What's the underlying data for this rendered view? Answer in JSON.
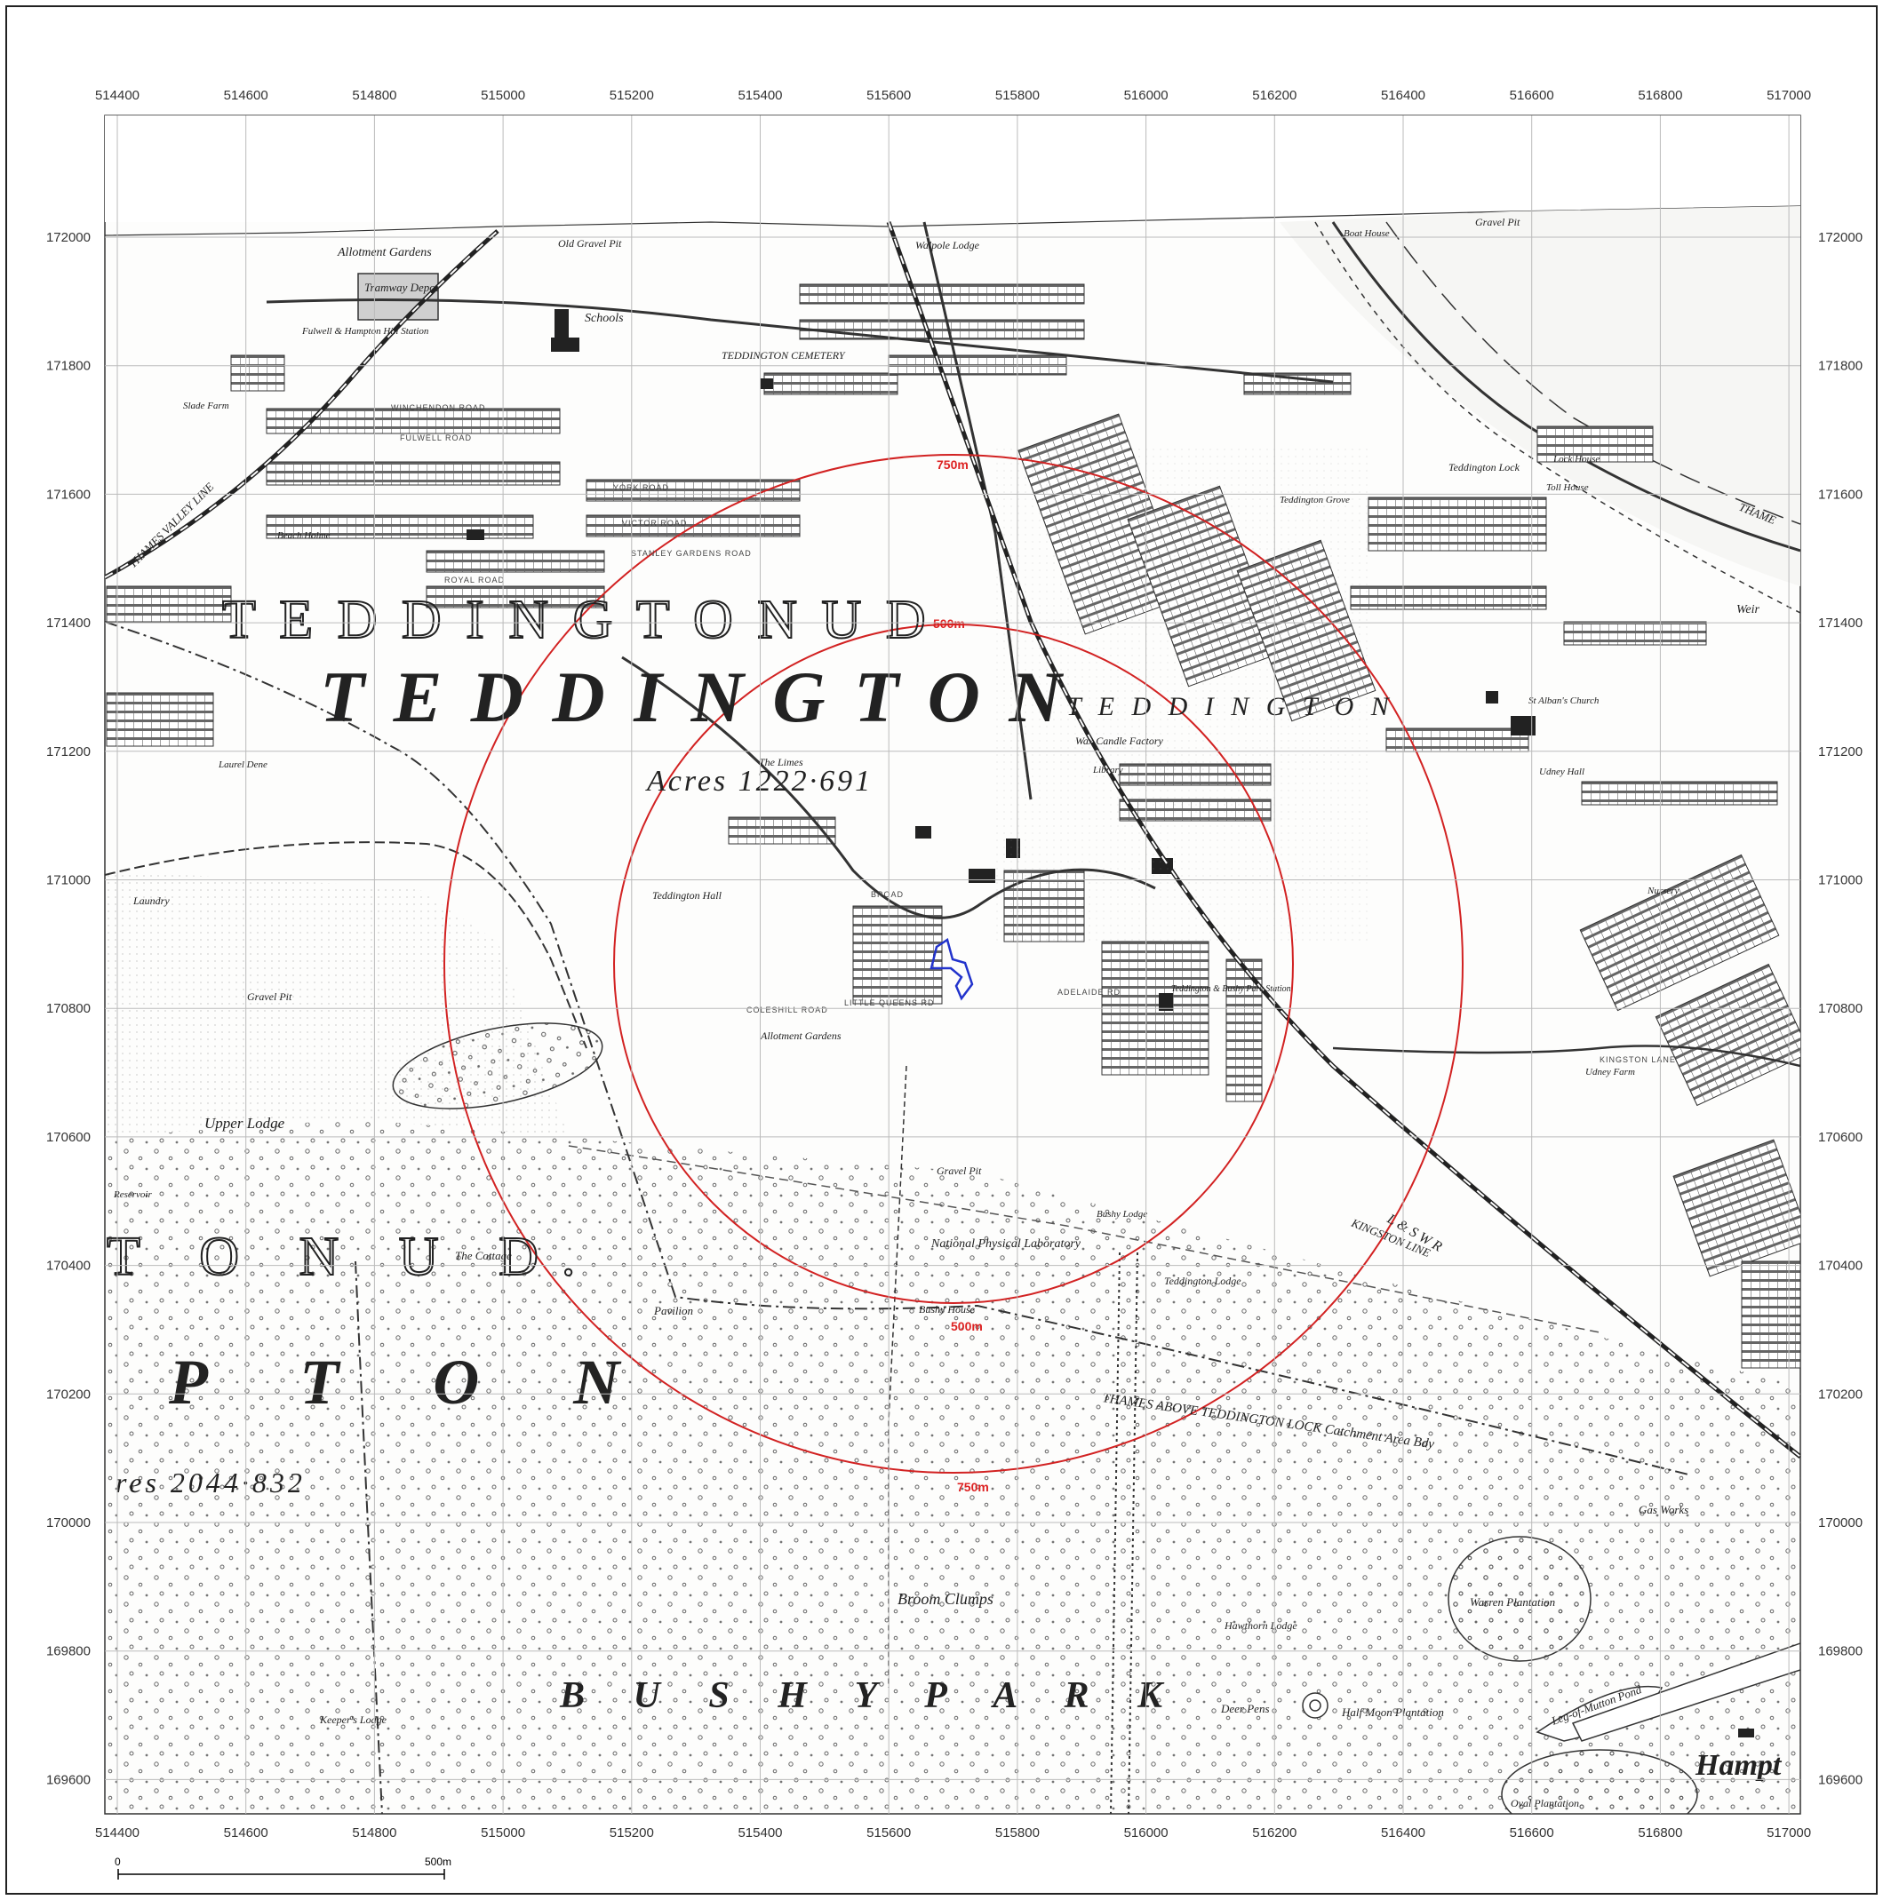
{
  "axes": {
    "easting_ticks": [
      "514400",
      "514600",
      "514800",
      "515000",
      "515200",
      "515400",
      "515600",
      "515800",
      "516000",
      "516200",
      "516400",
      "516600",
      "516800",
      "517000"
    ],
    "northing_ticks": [
      "172000",
      "171800",
      "171600",
      "171400",
      "171200",
      "171000",
      "170800",
      "170600",
      "170400",
      "170200",
      "170000",
      "169800",
      "169600"
    ]
  },
  "rings": {
    "inner_label": "500m",
    "outer_label": "750m",
    "color": "#d22222"
  },
  "site_color": "#2233cc",
  "scale_bar": {
    "start": "0",
    "end": "500m"
  },
  "map_labels": {
    "big_teddington": "T E D D I N G T O N",
    "outline_ud_top": "T E D D I N G T O N   U D",
    "teddington_small": "T E D D I N G T O N",
    "acres_1": "Acres  1222·691",
    "ud_bottom": "T O N   U D.",
    "pton": "P T O N",
    "acres_2": "res  2044·832",
    "bushy_park": "B   U   S   H   Y         P   A   R   K",
    "hampton": "Hampt",
    "tramway_depot": "Tramway Depot",
    "allotment_gardens_top": "Allotment Gardens",
    "old_gravel_pit": "Old Gravel Pit",
    "schools": "Schools",
    "fulwell_station": "Fulwell & Hampton Hill Station",
    "teddington_cemetery": "TEDDINGTON CEMETERY",
    "walpole_lodge": "Walpole Lodge",
    "gravel_pit_ne": "Gravel Pit",
    "boat_house": "Boat House",
    "teddington_lock": "Teddington Lock",
    "lock_house": "Lock House",
    "toll_house": "Toll House",
    "thames": "THAME",
    "weir": "Weir",
    "teddington_grove": "Teddington Grove",
    "wax_candle_factory": "Wax Candle Factory",
    "library": "Library",
    "the_limes": "The Limes",
    "teddington_hall": "Teddington Hall",
    "st_albans_church": "St Alban's Church",
    "udney_hall": "Udney Hall",
    "nursery": "Nursery",
    "udney_farm": "Udney Farm",
    "upper_lodge": "Upper Lodge",
    "reservoir": "Reservoir",
    "the_cottage": "The Cottage",
    "pavilion": "Pavilion",
    "npl": "National Physical Laboratory",
    "bushy_house": "Bushy House",
    "bushy_lodge": "Bushy Lodge",
    "teddington_lodge": "Teddington Lodge",
    "teddington_station": "Teddington & Bushy Park Station",
    "lswr": "L & S W R",
    "kingston_line": "KINGSTON LINE",
    "thames_valley_line": "THAMES VALLEY LINE",
    "catchment": "THAMES ABOVE TEDDINGTON LOCK  Catchment Area Bdy",
    "gas_works": "Gas Works",
    "broom_clumps": "Broom Clumps",
    "hawthorn_lodge": "Hawthorn Lodge",
    "deer_pens": "Deer Pens",
    "half_moon_plantation": "Half Moon Plantation",
    "warren_plantation": "Warren Plantation",
    "leg_of_mutton_pond": "Leg-of-Mutton Pond",
    "oval_plantation": "Oval Plantation",
    "keepers_lodge": "Keeper's Lodge",
    "laundry": "Laundry",
    "beach_holme": "Beach Holme",
    "laurel_dene": "Laurel Dene",
    "slade_farm": "Slade Farm",
    "allotment_gardens_mid": "Allotment Gardens",
    "gravel_pit_sw": "Gravel Pit",
    "gravel_pit_npl": "Gravel Pit",
    "stanley_road": "STANLEY GARDENS ROAD",
    "victor_road": "VICTOR ROAD",
    "york_road": "YORK ROAD",
    "royal_road": "ROYAL ROAD",
    "fulwell_road": "FULWELL ROAD",
    "winchendon_road": "WINCHENDON ROAD",
    "broad": "BROAD",
    "kingston_lane": "KINGSTON LANE",
    "coleshill_road": "COLESHILL ROAD",
    "little_queens_rd": "LITTLE QUEENS RD",
    "adelaide_rd": "ADELAIDE RD"
  }
}
